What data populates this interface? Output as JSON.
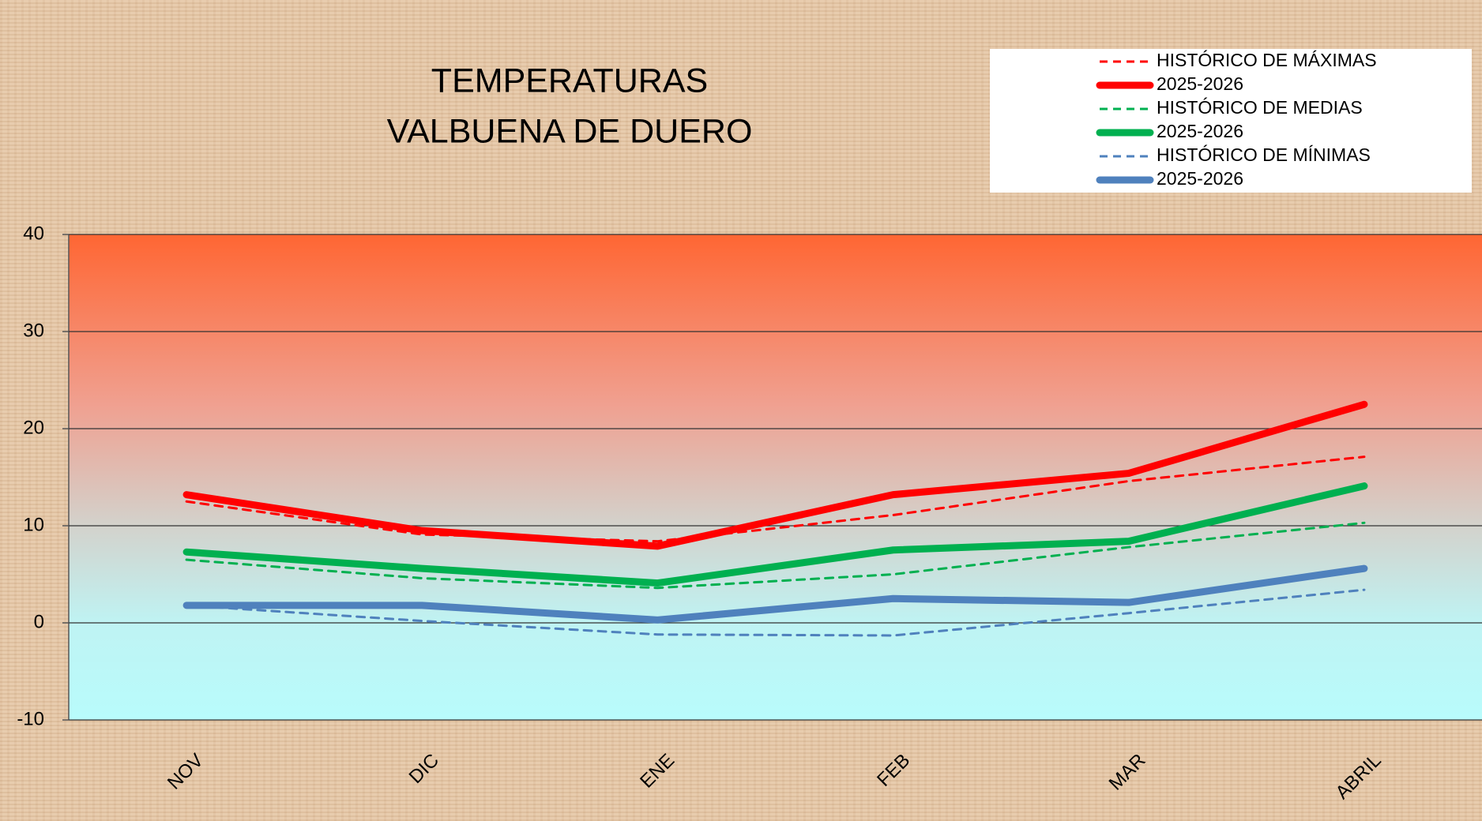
{
  "chart_data": {
    "type": "line",
    "title": [
      "TEMPERATURAS",
      "VALBUENA DE DUERO"
    ],
    "categories": [
      "NOV",
      "DIC",
      "ENE",
      "FEB",
      "MAR",
      "ABRIL"
    ],
    "series": [
      {
        "name": "HISTÓRICO DE MÁXIMAS",
        "color": "#ff0000",
        "line_style": "dashed",
        "values": [
          12.5,
          9.1,
          8.4,
          11.1,
          14.6,
          17.1
        ]
      },
      {
        "name": "2025-2026",
        "color": "#ff0000",
        "line_style": "solid",
        "values": [
          13.2,
          9.5,
          7.9,
          13.2,
          15.4,
          22.5
        ]
      },
      {
        "name": "HISTÓRICO DE MEDIAS",
        "color": "#00b050",
        "line_style": "dashed",
        "values": [
          6.5,
          4.6,
          3.6,
          5.0,
          7.8,
          10.3
        ]
      },
      {
        "name": "2025-2026",
        "color": "#00b050",
        "line_style": "solid",
        "values": [
          7.3,
          5.6,
          4.1,
          7.5,
          8.4,
          14.1
        ]
      },
      {
        "name": "HISTÓRICO DE MÍNIMAS",
        "color": "#4f81bd",
        "line_style": "dashed",
        "values": [
          1.8,
          0.2,
          -1.2,
          -1.3,
          1.0,
          3.4
        ]
      },
      {
        "name": "2025-2026",
        "color": "#4f81bd",
        "line_style": "solid",
        "values": [
          1.8,
          1.8,
          0.3,
          2.5,
          2.1,
          5.6
        ]
      }
    ],
    "ylim": [
      -10,
      40
    ],
    "yticks": [
      -10,
      0,
      10,
      20,
      30,
      40
    ],
    "grid": true,
    "legend": "top-right"
  }
}
